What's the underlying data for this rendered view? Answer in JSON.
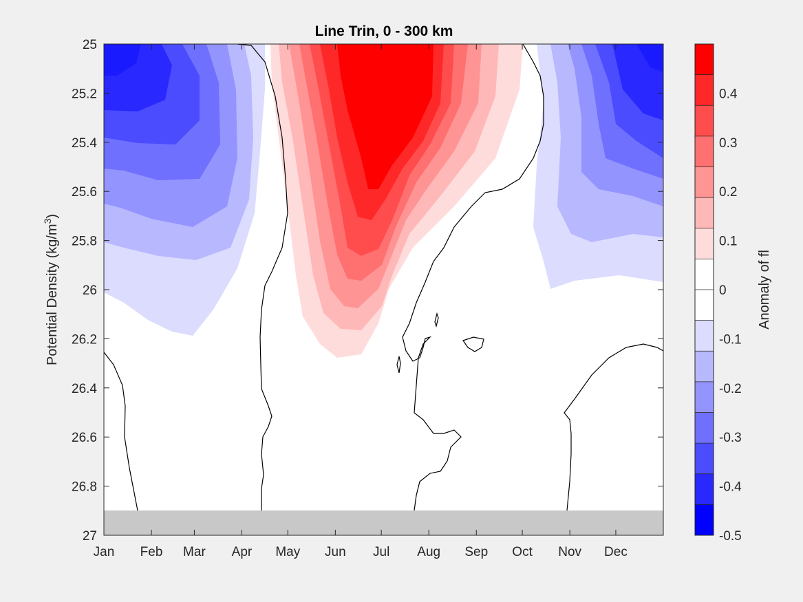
{
  "chart_data": {
    "type": "heatmap",
    "title": "Line Trin, 0 - 300 km",
    "xlabel": "",
    "ylabel": "Potential Density (kg/m",
    "ylabel_sup": "3",
    "ylabel_close": ")",
    "x_tick_labels": [
      "Jan",
      "Feb",
      "Mar",
      "Apr",
      "May",
      "Jun",
      "Jul",
      "Aug",
      "Sep",
      "Oct",
      "Nov",
      "Dec"
    ],
    "y_ticks": [
      25,
      25.2,
      25.4,
      25.6,
      25.8,
      26,
      26.2,
      26.4,
      26.6,
      26.8,
      27
    ],
    "y_tick_labels": [
      "25",
      "25.2",
      "25.4",
      "25.6",
      "25.8",
      "26",
      "26.2",
      "26.4",
      "26.6",
      "26.8",
      "27"
    ],
    "ylim": [
      25,
      27
    ],
    "y_reversed": true,
    "no_data_below_density": 26.9,
    "no_data_color": "#c8c8c8",
    "colorbar": {
      "label": "Anomaly of fl",
      "range": [
        -0.5,
        0.5
      ],
      "tick_values": [
        0.4,
        0.3,
        0.2,
        0.1,
        0,
        -0.1,
        -0.2,
        -0.3,
        -0.4,
        -0.5
      ],
      "tick_labels": [
        "0.4",
        "0.3",
        "0.2",
        "0.1",
        "0",
        "-0.1",
        "-0.2",
        "-0.3",
        "-0.4",
        "-0.5"
      ],
      "colors": [
        "#ff0000",
        "#ff2828",
        "#ff4c4c",
        "#ff7070",
        "#ff9494",
        "#ffb8b8",
        "#ffdcdc",
        "#ffffff",
        "#ffffff",
        "#dcdcff",
        "#b8b8ff",
        "#9494ff",
        "#7070ff",
        "#4c4cff",
        "#2828ff",
        "#0000ff"
      ]
    },
    "zero_contour_color": "#000000",
    "grid": false
  }
}
